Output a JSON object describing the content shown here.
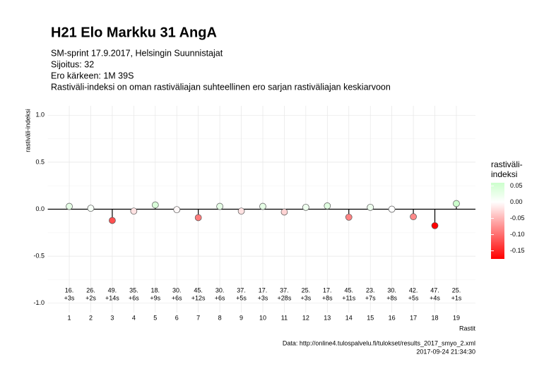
{
  "chart_data": {
    "type": "lollipop",
    "title": "H21 Elo Markku 31 AngA",
    "subtitle": [
      "SM-sprint 17.9.2017, Helsingin Suunnistajat",
      "Sijoitus: 32",
      "Ero kärkeen: 1M 39S",
      "Rastiväli-indeksi on oman rastiväliajan suhteellinen ero sarjan rastiväliajan keskiarvoon"
    ],
    "y_label": "rastiväli-indeksi",
    "x_label": "Rastit",
    "categories": [
      "1",
      "2",
      "3",
      "4",
      "5",
      "6",
      "7",
      "8",
      "9",
      "10",
      "11",
      "12",
      "13",
      "14",
      "15",
      "16",
      "17",
      "18",
      "19"
    ],
    "values": [
      0.03,
      0.01,
      -0.12,
      -0.02,
      0.045,
      -0.005,
      -0.09,
      0.03,
      -0.02,
      0.03,
      -0.03,
      0.02,
      0.035,
      -0.085,
      0.02,
      0.0,
      -0.08,
      -0.175,
      0.06
    ],
    "positions": [
      "16.",
      "26.",
      "49.",
      "35.",
      "18.",
      "30.",
      "45.",
      "30.",
      "37.",
      "17.",
      "37.",
      "25.",
      "17.",
      "45.",
      "23.",
      "30.",
      "42.",
      "47.",
      "25."
    ],
    "splits": [
      "+3s",
      "+2s",
      "+14s",
      "+6s",
      "+9s",
      "+6s",
      "+12s",
      "+6s",
      "+5s",
      "+3s",
      "+28s",
      "+3s",
      "+8s",
      "+11s",
      "+7s",
      "+8s",
      "+5s",
      "+4s",
      "+1s"
    ],
    "ylim": [
      -1.1,
      1.1
    ],
    "yticks": [
      {
        "value": -1,
        "label": "-1.0"
      },
      -0.5,
      {
        "value": 0,
        "label": "0.0"
      },
      0.5,
      {
        "value": 1,
        "label": "1.0"
      }
    ],
    "grid": true,
    "legend_title": [
      "rastiväli-",
      "indeksi"
    ],
    "color_scale": {
      "low": "#ff0000",
      "mid": "#ffffff",
      "high": "#ccffcc",
      "lim": [
        -0.175,
        0.06
      ]
    },
    "legend_ticks": [
      {
        "value": 0.05,
        "label": "0.05"
      },
      {
        "value": 0,
        "label": "0.00"
      },
      {
        "value": -0.05,
        "label": "-0.05"
      },
      {
        "value": -0.1,
        "label": "-0.10"
      },
      {
        "value": -0.15,
        "label": "-0.15"
      }
    ],
    "caption": [
      "Data: http://online4.tulospalvelu.fi/tulokset/results_2017_smyo_2.xml",
      "2017-09-24 21:34:30"
    ]
  }
}
